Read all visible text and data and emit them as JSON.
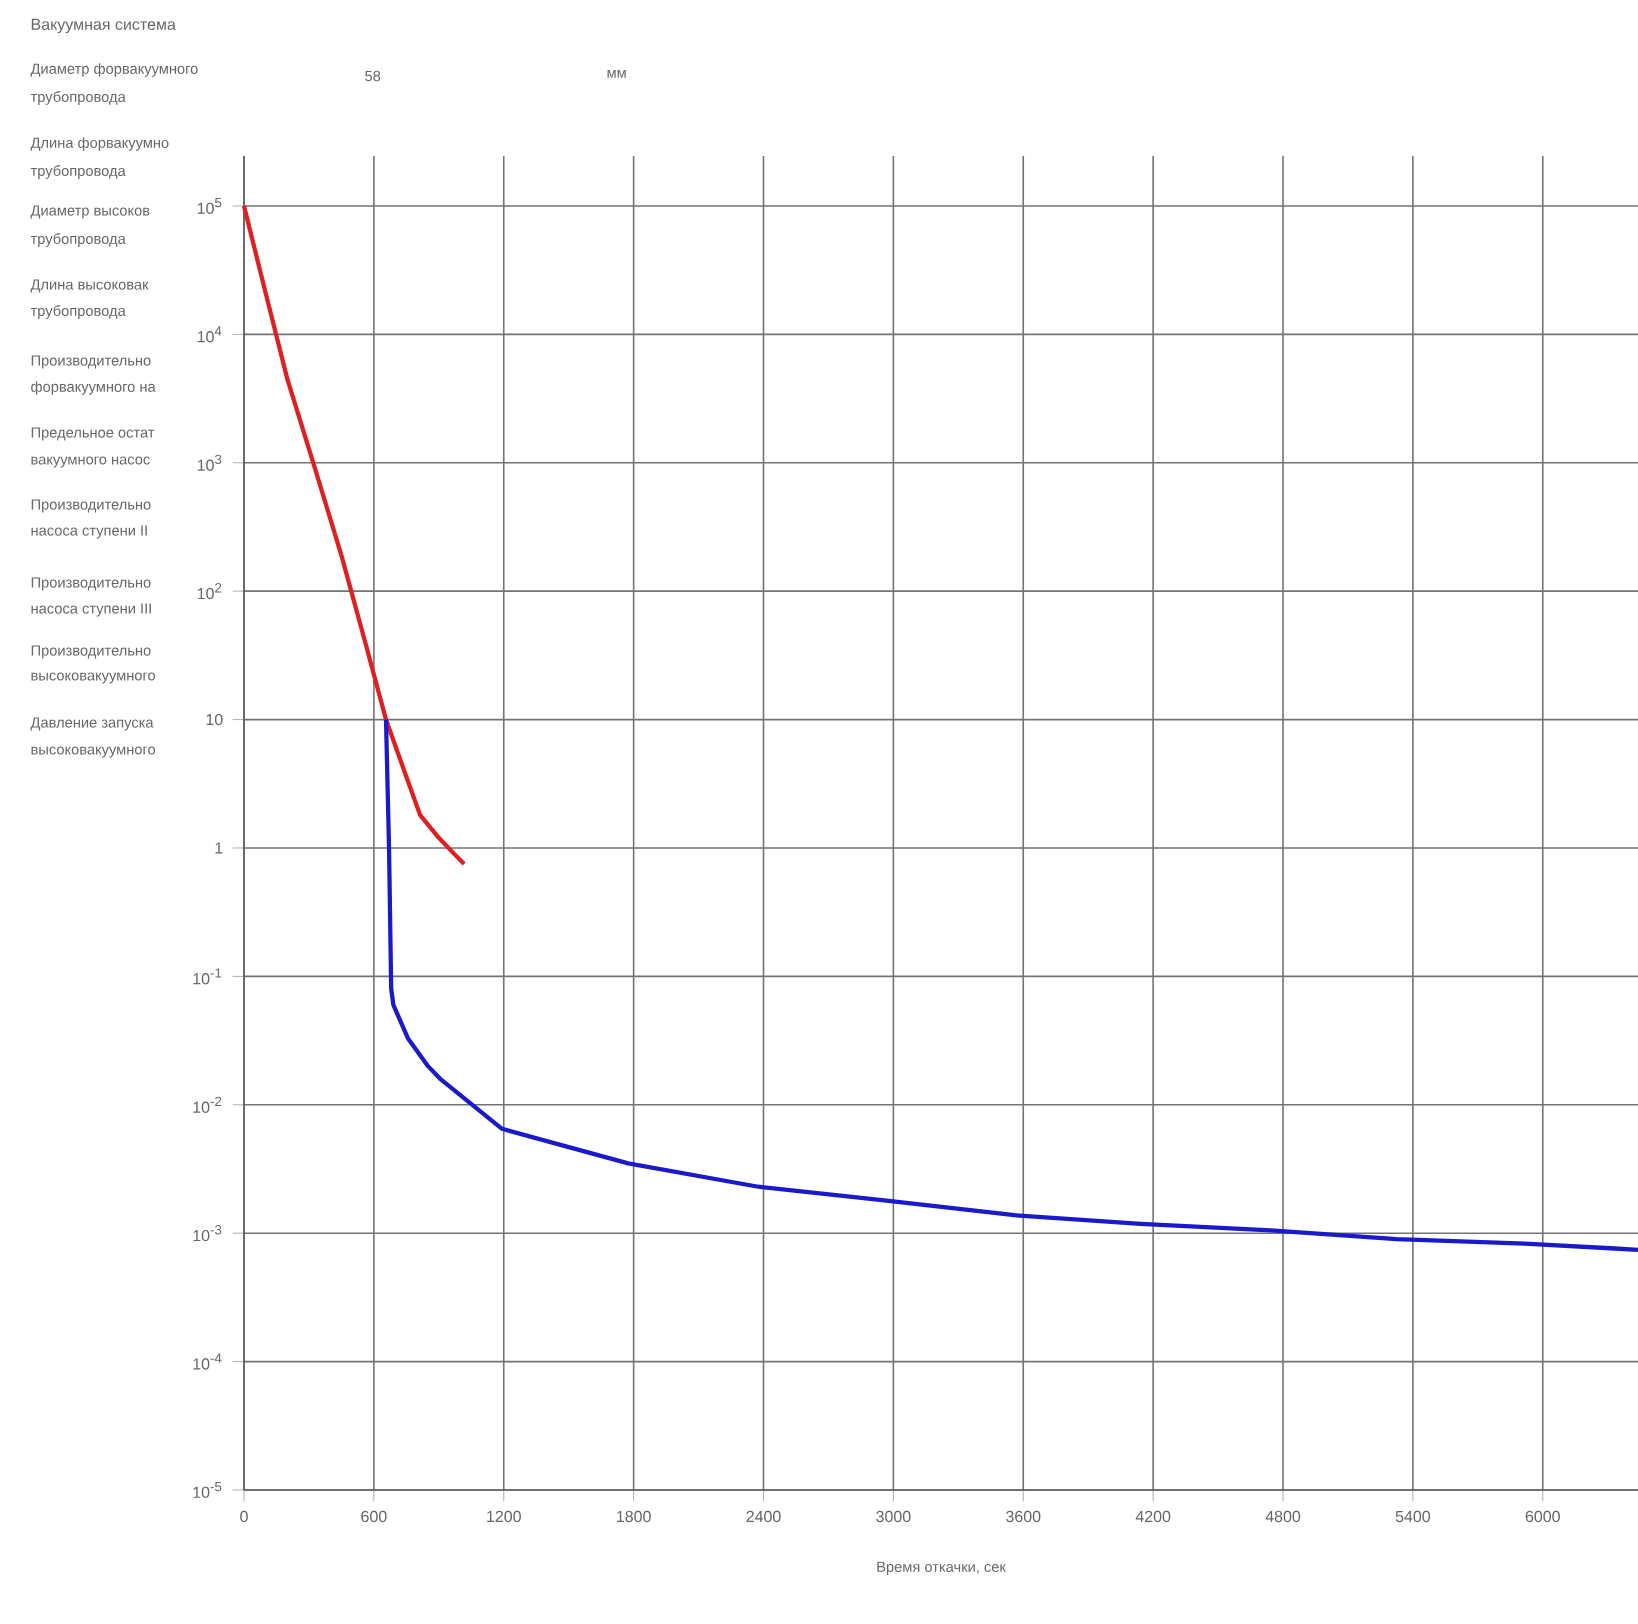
{
  "chart_data": {
    "type": "line",
    "xlabel": "Время откачки, сек",
    "log": "y",
    "grid": true,
    "marker": "none",
    "line_style": "solid",
    "xlim": [
      0,
      6440
    ],
    "ylim": [
      1e-05,
      245000
    ],
    "xticks": [
      0,
      600,
      1200,
      1800,
      2400,
      3000,
      3600,
      4200,
      4800,
      5400,
      6000
    ],
    "yticks": [
      {
        "value": 100000,
        "label": "10$^{5}$"
      },
      {
        "value": 10000,
        "label": "10$^{4}$"
      },
      {
        "value": 1000,
        "label": "10$^{3}$"
      },
      {
        "value": 100,
        "label": "10$^{2}$"
      },
      {
        "value": 10,
        "label": "10"
      },
      {
        "value": 1,
        "label": "1"
      },
      {
        "value": 0.1,
        "label": "10$^{-1}$"
      },
      {
        "value": 0.01,
        "label": "10$^{-2}$"
      },
      {
        "value": 0.001,
        "label": "10$^{-3}$"
      },
      {
        "value": 0.0001,
        "label": "10$^{-4}$"
      },
      {
        "value": 1e-05,
        "label": "10$^{-5}$"
      }
    ],
    "series": [
      {
        "color": "#e02020",
        "x": [
          0,
          100,
          200,
          324,
          450,
          560,
          656,
          740,
          814,
          900,
          971,
          1017
        ],
        "values": [
          100000,
          21000,
          4500,
          950,
          190,
          40,
          10,
          4,
          1.8,
          1.2,
          0.9,
          0.75
        ]
      },
      {
        "color": "#1a1acc",
        "x": [
          656,
          670,
          680,
          690,
          757,
          850,
          905,
          1192,
          1775,
          2376,
          2958,
          3559,
          4142,
          4743,
          5325,
          5917,
          6333,
          6440
        ],
        "values": [
          10,
          1,
          0.08,
          0.06,
          0.033,
          0.02,
          0.016,
          0.0065,
          0.0035,
          0.0023,
          0.0018,
          0.00138,
          0.00118,
          0.00105,
          0.0009,
          0.00083,
          0.00076,
          0.00074
        ]
      }
    ],
    "annotations": [
      "Вакуумная система",
      "Диаметр форвакуумного",
      "трубопровода",
      "58",
      "мм",
      "Длина форвакуумно",
      "трубопровода",
      "Диаметр высоков",
      "трубопровода",
      "Длина высоковак",
      "трубопровода",
      "Производительно",
      "форвакуумного на",
      "Предельное остат",
      "вакуумного насос",
      "Производительно",
      "насоса ступени II",
      "Производительно",
      "насоса ступени III",
      "Производительно",
      "высоковакуумного",
      "Давление запуска",
      "высоковакуумного"
    ]
  }
}
